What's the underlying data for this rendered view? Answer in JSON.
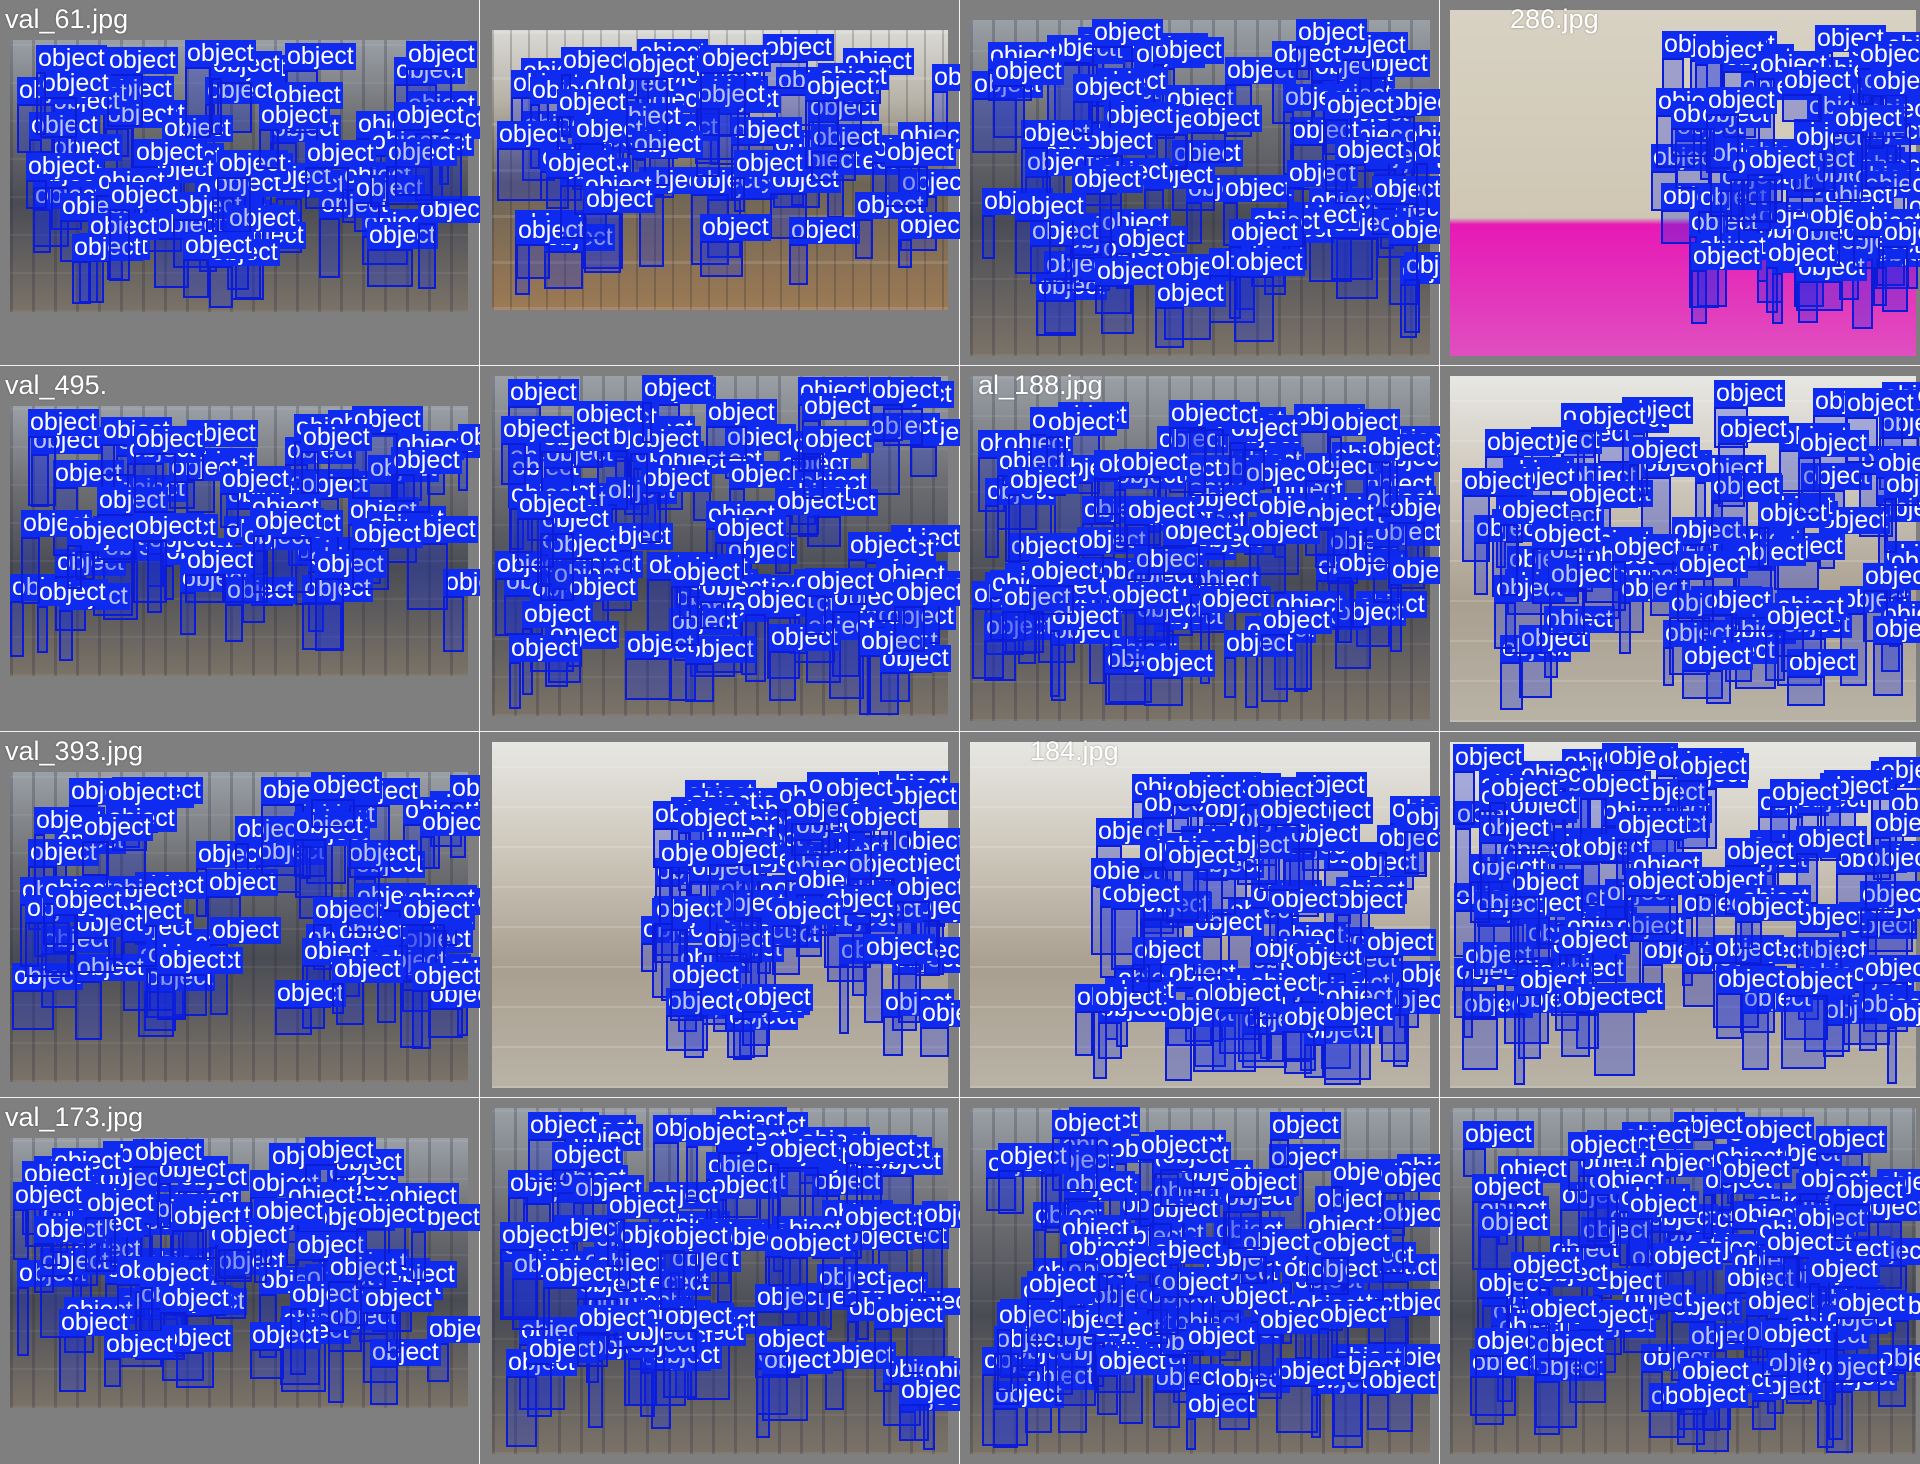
{
  "mosaic": {
    "background": "#7f7f7f",
    "grid_color": "#f2f2f2",
    "box_color": "#0c1bd6",
    "label_color": "#0f2bf0",
    "label_text_color": "#ffffff",
    "class_name": "object",
    "tiles": [
      {
        "label": "val_61.jpg"
      },
      {
        "label": ""
      },
      {
        "label": ""
      },
      {
        "label": "286.jpg"
      },
      {
        "label": "val_495."
      },
      {
        "label": ""
      },
      {
        "label": "al_188.jpg"
      },
      {
        "label": ""
      },
      {
        "label": "val_393.jpg"
      },
      {
        "label": ""
      },
      {
        "label": "184.jpg"
      },
      {
        "label": ""
      },
      {
        "label": "val_173.jpg"
      },
      {
        "label": ""
      },
      {
        "label": ""
      },
      {
        "label": ""
      }
    ]
  }
}
